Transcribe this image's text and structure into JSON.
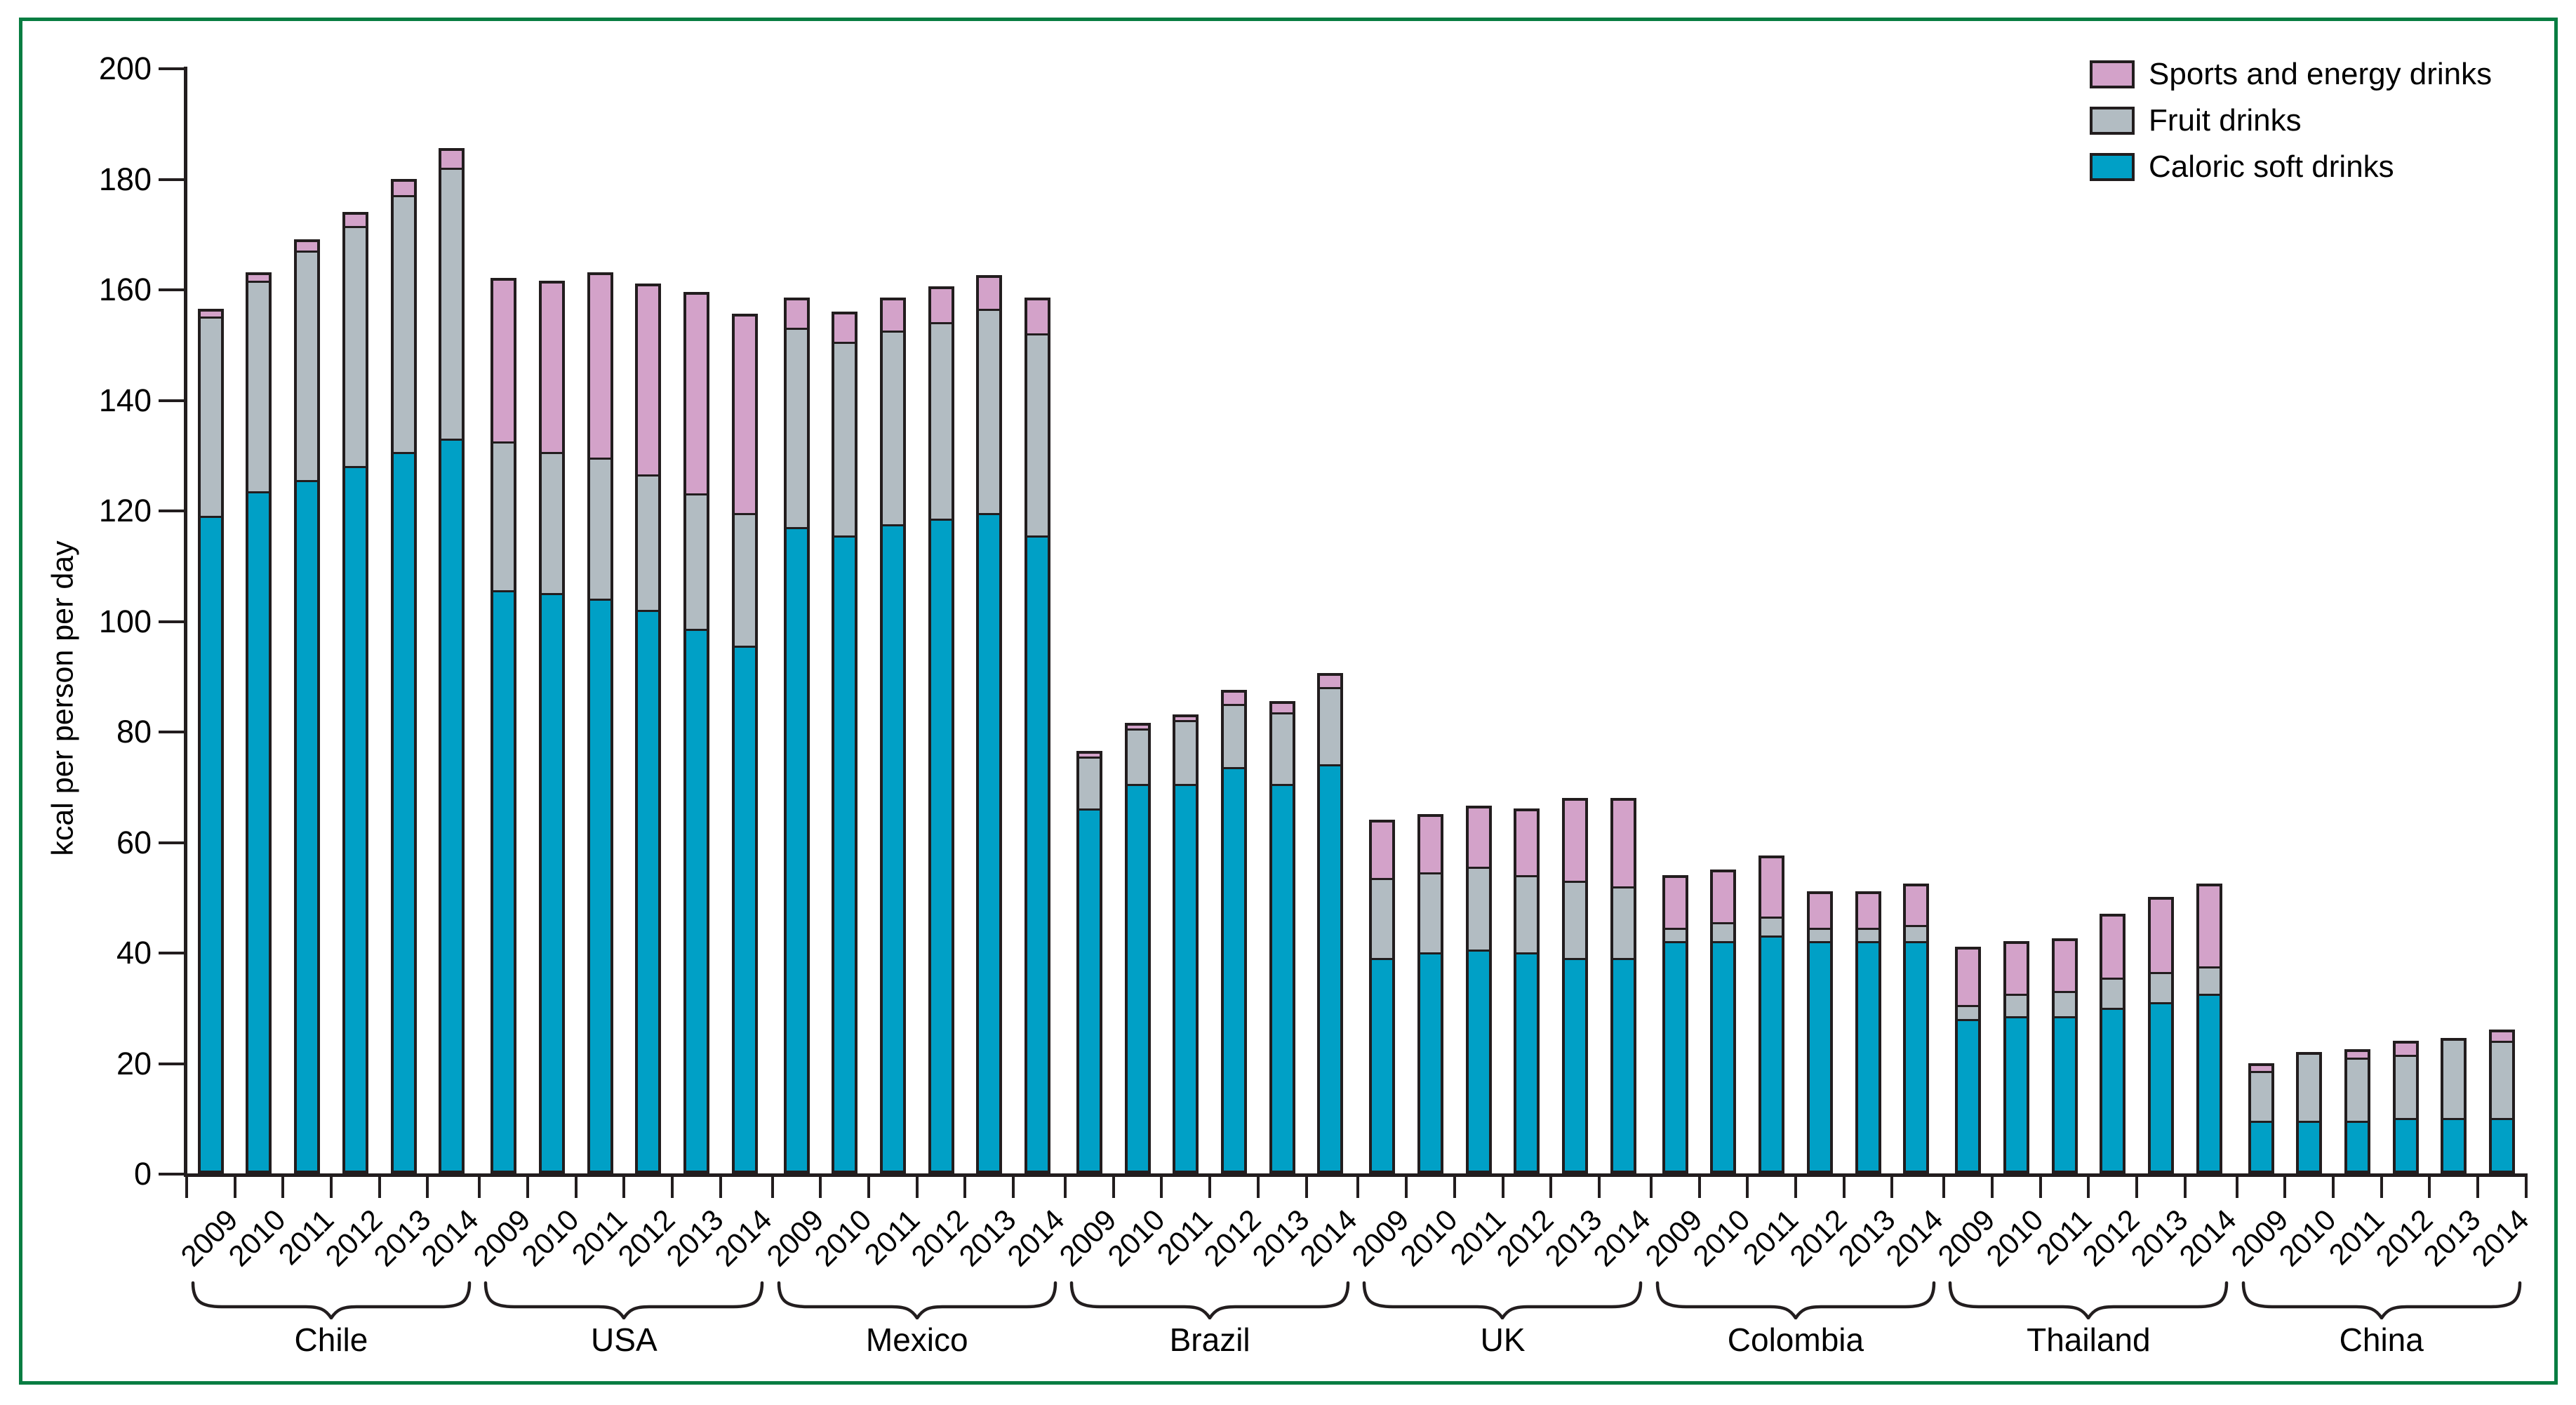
{
  "colors": {
    "soft": "#00a0c6",
    "fruit": "#b2bcc2",
    "sports": "#d3a2c9",
    "outline": "#221d1e",
    "frame_green": "#087d42",
    "text": "#000000"
  },
  "legend": {
    "items": [
      {
        "key": "sports",
        "label": "Sports and energy drinks"
      },
      {
        "key": "fruit",
        "label": "Fruit drinks"
      },
      {
        "key": "soft",
        "label": "Caloric soft drinks"
      }
    ]
  },
  "y_axis": {
    "title": "kcal per person per day",
    "min": 0,
    "max": 200,
    "step": 20,
    "ticks": [
      0,
      20,
      40,
      60,
      80,
      100,
      120,
      140,
      160,
      180,
      200
    ]
  },
  "chart_data": {
    "type": "bar",
    "stacked": true,
    "title": "",
    "xlabel": "",
    "ylabel": "kcal per person per day",
    "ylim": [
      0,
      200
    ],
    "ytick_step": 20,
    "grid": false,
    "legend_position": "top-right",
    "years": [
      "2009",
      "2010",
      "2011",
      "2012",
      "2013",
      "2014"
    ],
    "categories": [
      "Chile",
      "USA",
      "Mexico",
      "Brazil",
      "UK",
      "Colombia",
      "Thailand",
      "China"
    ],
    "series": [
      {
        "name": "Caloric soft drinks",
        "key": "soft",
        "values": {
          "Chile": [
            119.5,
            124,
            126,
            128.5,
            131,
            133.5
          ],
          "USA": [
            106,
            105.5,
            104.5,
            102.5,
            99,
            96
          ],
          "Mexico": [
            117.5,
            116,
            118,
            119,
            120,
            116
          ],
          "Brazil": [
            66.5,
            71,
            71,
            74,
            71,
            74.5
          ],
          "UK": [
            39.5,
            40.5,
            41,
            40.5,
            39.5,
            39.5
          ],
          "Colombia": [
            42.5,
            42.5,
            43.5,
            42.5,
            42.5,
            42.5
          ],
          "Thailand": [
            28.5,
            29,
            29,
            30.5,
            31.5,
            33
          ],
          "China": [
            10,
            10,
            10,
            10.5,
            10.5,
            10.5
          ]
        }
      },
      {
        "name": "Fruit drinks",
        "key": "fruit",
        "values": {
          "Chile": [
            36,
            38,
            41.5,
            43.5,
            46.5,
            49
          ],
          "USA": [
            27,
            25.5,
            25.5,
            24.5,
            24.5,
            24
          ],
          "Mexico": [
            36,
            35,
            35,
            35.5,
            37,
            36.5
          ],
          "Brazil": [
            9.5,
            10,
            11.5,
            11.5,
            13,
            14
          ],
          "UK": [
            14.5,
            14.5,
            15,
            14,
            14,
            13
          ],
          "Colombia": [
            2.5,
            3.5,
            3.5,
            2.5,
            2.5,
            3
          ],
          "Thailand": [
            2.5,
            4,
            4.5,
            5.5,
            5.5,
            5
          ],
          "China": [
            9,
            12,
            11.5,
            11.5,
            14,
            14
          ]
        }
      },
      {
        "name": "Sports and energy drinks",
        "key": "sports",
        "values": {
          "Chile": [
            1,
            1,
            1.5,
            2,
            2.5,
            3
          ],
          "USA": [
            29,
            30.5,
            33,
            34,
            36,
            35.5
          ],
          "Mexico": [
            5,
            5,
            5.5,
            6,
            5.5,
            6
          ],
          "Brazil": [
            0.5,
            0.5,
            0.5,
            2,
            1.5,
            2
          ],
          "UK": [
            10,
            10,
            10.5,
            11.5,
            14.5,
            15.5
          ],
          "Colombia": [
            9,
            9,
            10.5,
            6,
            6,
            7
          ],
          "Thailand": [
            10,
            9,
            9,
            11,
            13,
            14.5
          ],
          "China": [
            1,
            0,
            1,
            2,
            0,
            1.5
          ]
        }
      }
    ]
  }
}
